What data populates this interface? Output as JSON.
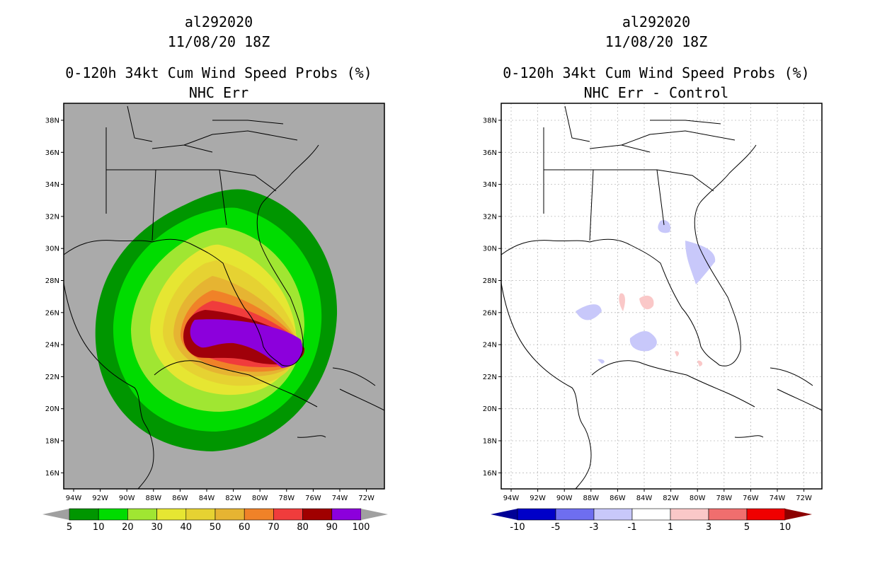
{
  "left_panel": {
    "storm_id": "al292020",
    "datetime": "11/08/20 18Z",
    "title": "0-120h 34kt Cum Wind Speed Probs (%)",
    "subtitle": "NHC Err",
    "background_color": "#aaaaaa",
    "colorbar": {
      "labels": [
        "5",
        "10",
        "20",
        "30",
        "40",
        "50",
        "60",
        "70",
        "80",
        "90",
        "100"
      ],
      "colors": [
        "#009600",
        "#00dc00",
        "#a0e632",
        "#e6e632",
        "#e6d232",
        "#e6b432",
        "#f08228",
        "#f03c3c",
        "#a00000",
        "#8c00dc"
      ],
      "extend_color": "#a0a0a0"
    }
  },
  "right_panel": {
    "storm_id": "al292020",
    "datetime": "11/08/20 18Z",
    "title": "0-120h 34kt Cum Wind Speed Probs (%)",
    "subtitle": "NHC Err - Control",
    "background_color": "#ffffff",
    "colorbar": {
      "labels": [
        "-10",
        "-5",
        "-3",
        "-1",
        "1",
        "3",
        "5",
        "10"
      ],
      "colors": [
        "#0000c8",
        "#6e6ef0",
        "#c8c8fa",
        "#ffffff",
        "#fac8c8",
        "#f06e6e",
        "#f00000"
      ],
      "low_extend_color": "#000096",
      "high_extend_color": "#8c0000"
    }
  },
  "lat_labels": [
    "38N",
    "36N",
    "34N",
    "32N",
    "30N",
    "28N",
    "26N",
    "24N",
    "22N",
    "20N",
    "18N",
    "16N"
  ],
  "lon_labels": [
    "94W",
    "92W",
    "90W",
    "88W",
    "86W",
    "84W",
    "82W",
    "80W",
    "78W",
    "76W",
    "74W",
    "72W"
  ]
}
